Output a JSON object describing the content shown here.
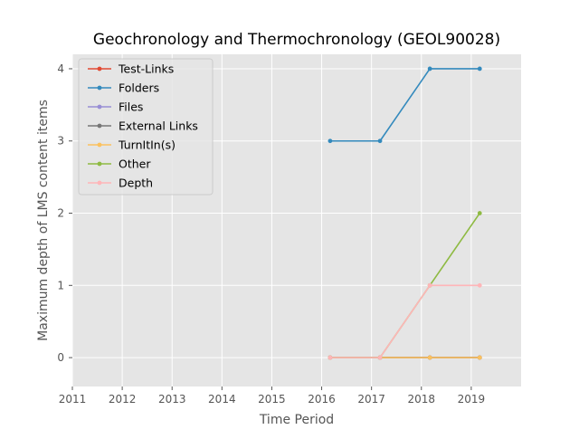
{
  "chart_data": {
    "type": "line",
    "title": "Geochronology and Thermochronology (GEOL90028)",
    "xlabel": "Time Period",
    "ylabel": "Maximum depth of LMS content items",
    "xlim": [
      2011,
      2020
    ],
    "ylim": [
      -0.4,
      4.2
    ],
    "xticks": [
      "2011",
      "2012",
      "2013",
      "2014",
      "2015",
      "2016",
      "2017",
      "2018",
      "2019"
    ],
    "yticks": [
      "0",
      "1",
      "2",
      "3",
      "4"
    ],
    "grid": true,
    "background": "#e5e5e5",
    "legend_position": "upper left",
    "x": [
      2016.17,
      2017.17,
      2018.17,
      2019.17
    ],
    "series": [
      {
        "name": "Test-Links",
        "color": "#E24A33",
        "values": [
          0,
          0,
          0,
          0
        ]
      },
      {
        "name": "Folders",
        "color": "#348ABD",
        "values": [
          3,
          3,
          4,
          4
        ]
      },
      {
        "name": "Files",
        "color": "#988ED5",
        "values": [
          0,
          0,
          0,
          0
        ]
      },
      {
        "name": "External Links",
        "color": "#777777",
        "values": [
          0,
          0,
          0,
          0
        ]
      },
      {
        "name": "TurnItIn(s)",
        "color": "#FBC15E",
        "values": [
          0,
          0,
          0,
          0
        ]
      },
      {
        "name": "Other",
        "color": "#8EBA42",
        "values": [
          0,
          0,
          1,
          2
        ]
      },
      {
        "name": "Depth",
        "color": "#FFB5B8",
        "values": [
          0,
          0,
          1,
          1
        ]
      }
    ]
  }
}
